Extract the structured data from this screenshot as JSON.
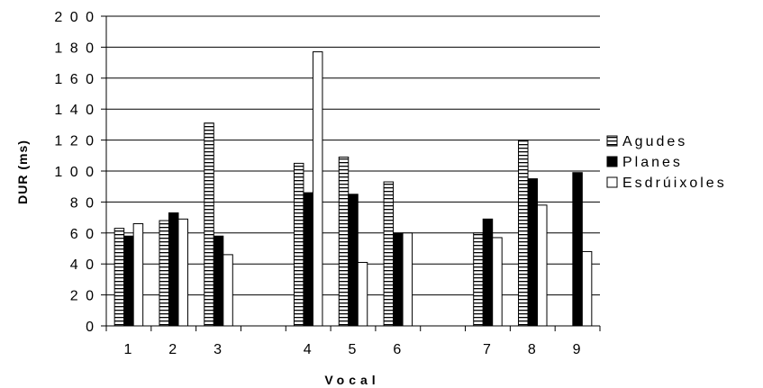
{
  "chart_data": {
    "type": "bar",
    "xlabel": "Vocal",
    "ylabel": "DUR (ms)",
    "ylim": [
      0,
      200
    ],
    "ytick_step": 20,
    "grid": true,
    "legend_position": "right",
    "categories": [
      "1",
      "2",
      "3",
      "",
      "4",
      "5",
      "6",
      "",
      "7",
      "8",
      "9"
    ],
    "series": [
      {
        "name": "Agudes",
        "pattern": "horizontal-stripes",
        "fill": "#ffffff",
        "values": [
          63,
          68,
          131,
          null,
          105,
          109,
          93,
          null,
          60,
          120,
          null
        ]
      },
      {
        "name": "Planes",
        "pattern": "solid",
        "fill": "#000000",
        "values": [
          58,
          73,
          58,
          null,
          86,
          85,
          60,
          null,
          69,
          95,
          99
        ]
      },
      {
        "name": "Esdrúixoles",
        "pattern": "solid",
        "fill": "#ffffff",
        "values": [
          66,
          69,
          46,
          null,
          177,
          41,
          60,
          null,
          57,
          78,
          48
        ]
      }
    ]
  }
}
